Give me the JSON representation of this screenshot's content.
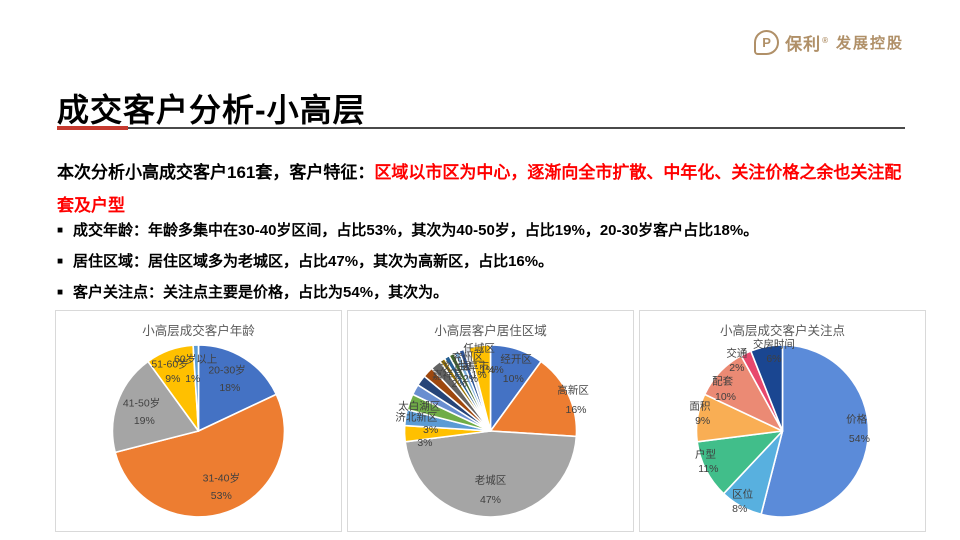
{
  "logo": {
    "mark": "P",
    "brand": "保利",
    "reg": "®",
    "suffix": "发展控股",
    "color": "#B09068"
  },
  "title": "成交客户分析-小高层",
  "intro": {
    "black": "本次分析小高成交客户161套，客户特征：",
    "red": "区域以市区为中心，逐渐向全市扩散、中年化、关注价格之余也关注配套及户型",
    "red_color": "#FF0000"
  },
  "bullets": [
    "成交年龄：年龄多集中在30-40岁区间，占比53%，其次为40-50岁，占比19%，20-30岁客户占比18%。",
    "居住区域：居住区域多为老城区，占比47%，其次为高新区，占比16%。",
    "客户关注点：关注点主要是价格，占比为54%，其次为。"
  ],
  "bullet_marker": "■",
  "chart_data": [
    {
      "type": "pie",
      "title": "小高层成交客户年龄",
      "legend": "none",
      "slices": [
        {
          "name": "20-30岁",
          "value": 18,
          "color": "#4472C4"
        },
        {
          "name": "31-40岁",
          "value": 53,
          "color": "#ED7D31"
        },
        {
          "name": "41-50岁",
          "value": 19,
          "color": "#A5A5A5"
        },
        {
          "name": "51-60岁",
          "value": 9,
          "color": "#FFC000"
        },
        {
          "name": "60岁以上",
          "value": 1,
          "color": "#5B9BD5"
        }
      ],
      "labels": [
        {
          "text": "20-30岁",
          "x": 60,
          "y": 27
        },
        {
          "text": "18%",
          "x": 61,
          "y": 35
        },
        {
          "text": "31-40岁",
          "x": 58,
          "y": 76
        },
        {
          "text": "53%",
          "x": 58,
          "y": 84
        },
        {
          "text": "41-50岁",
          "x": 30,
          "y": 42
        },
        {
          "text": "19%",
          "x": 31,
          "y": 50
        },
        {
          "text": "51-60岁",
          "x": 40,
          "y": 24
        },
        {
          "text": "9%",
          "x": 41,
          "y": 31
        },
        {
          "text": "60岁以上",
          "x": 49,
          "y": 22
        },
        {
          "text": "1%",
          "x": 48,
          "y": 31
        }
      ]
    },
    {
      "type": "pie",
      "title": "小高层客户居住区域",
      "legend": "none",
      "slices": [
        {
          "name": "经开区",
          "value": 10,
          "color": "#4472C4"
        },
        {
          "name": "高新区",
          "value": 16,
          "color": "#ED7D31"
        },
        {
          "name": "老城区",
          "value": 47,
          "color": "#A5A5A5"
        },
        {
          "name": "",
          "value": 3,
          "color": "#FFC000"
        },
        {
          "name": "济北新区",
          "value": 3,
          "color": "#5B9BD5"
        },
        {
          "name": "太白湖区",
          "value": 3,
          "color": "#70AD47"
        },
        {
          "name": "",
          "value": 2,
          "color": "#698ED0"
        },
        {
          "name": "",
          "value": 2,
          "color": "#264478"
        },
        {
          "name": "",
          "value": 2,
          "color": "#9E480E"
        },
        {
          "name": "",
          "value": 2,
          "color": "#636363"
        },
        {
          "name": "",
          "value": 1,
          "color": "#997300"
        },
        {
          "name": "",
          "value": 1,
          "color": "#255E91"
        },
        {
          "name": "",
          "value": 1,
          "color": "#43682B"
        },
        {
          "name": "",
          "value": 1,
          "color": "#7CAFDD"
        },
        {
          "name": "",
          "value": 1,
          "color": "#2F5597"
        },
        {
          "name": "",
          "value": 1,
          "color": "#D6DCE5"
        },
        {
          "name": "",
          "value": 4,
          "color": "#FFC000"
        }
      ],
      "labels": [
        {
          "text": "经开区",
          "x": 59,
          "y": 22
        },
        {
          "text": "10%",
          "x": 58,
          "y": 31
        },
        {
          "text": "高新区",
          "x": 79,
          "y": 36
        },
        {
          "text": "16%",
          "x": 80,
          "y": 45
        },
        {
          "text": "老城区",
          "x": 50,
          "y": 77
        },
        {
          "text": "47%",
          "x": 50,
          "y": 86
        },
        {
          "text": "太白湖区",
          "x": 25,
          "y": 43
        },
        {
          "text": "济北新区",
          "x": 24,
          "y": 48
        },
        {
          "text": "3%",
          "x": 29,
          "y": 54
        },
        {
          "text": "3%",
          "x": 27,
          "y": 60
        },
        {
          "text": "任城区",
          "x": 46,
          "y": 17
        },
        {
          "text": "兖州区",
          "x": 42,
          "y": 21
        },
        {
          "text": "曲阜市",
          "x": 44,
          "y": 25
        },
        {
          "text": "汶上县",
          "x": 38,
          "y": 25
        },
        {
          "text": "嘉祥县",
          "x": 35,
          "y": 29
        },
        {
          "text": "2%",
          "x": 39,
          "y": 33
        },
        {
          "text": "2%",
          "x": 43,
          "y": 31
        },
        {
          "text": "1%",
          "x": 46,
          "y": 29
        },
        {
          "text": "1%",
          "x": 49,
          "y": 27
        },
        {
          "text": "4%",
          "x": 52,
          "y": 27
        }
      ]
    },
    {
      "type": "pie",
      "title": "小高层成交客户关注点",
      "legend": "none",
      "slices": [
        {
          "name": "价格",
          "value": 54,
          "color": "#5B8BD9"
        },
        {
          "name": "区位",
          "value": 8,
          "color": "#58B0DF"
        },
        {
          "name": "户型",
          "value": 11,
          "color": "#41BE8A"
        },
        {
          "name": "面积",
          "value": 9,
          "color": "#F9AE54"
        },
        {
          "name": "配套",
          "value": 10,
          "color": "#EB8A74"
        },
        {
          "name": "交通",
          "value": 2,
          "color": "#E8486D"
        },
        {
          "name": "交房时间",
          "value": 6,
          "color": "#1A4691"
        }
      ],
      "labels": [
        {
          "text": "价格",
          "x": 76,
          "y": 49
        },
        {
          "text": "54%",
          "x": 77,
          "y": 58
        },
        {
          "text": "区位",
          "x": 36,
          "y": 83
        },
        {
          "text": "8%",
          "x": 35,
          "y": 90
        },
        {
          "text": "户型",
          "x": 23,
          "y": 65
        },
        {
          "text": "11%",
          "x": 24,
          "y": 72
        },
        {
          "text": "面积",
          "x": 21,
          "y": 43
        },
        {
          "text": "9%",
          "x": 22,
          "y": 50
        },
        {
          "text": "配套",
          "x": 29,
          "y": 32
        },
        {
          "text": "10%",
          "x": 30,
          "y": 39
        },
        {
          "text": "交通",
          "x": 34,
          "y": 19
        },
        {
          "text": "2%",
          "x": 34,
          "y": 26
        },
        {
          "text": "交房时间",
          "x": 47,
          "y": 15
        },
        {
          "text": "6%",
          "x": 47,
          "y": 22
        }
      ]
    }
  ]
}
